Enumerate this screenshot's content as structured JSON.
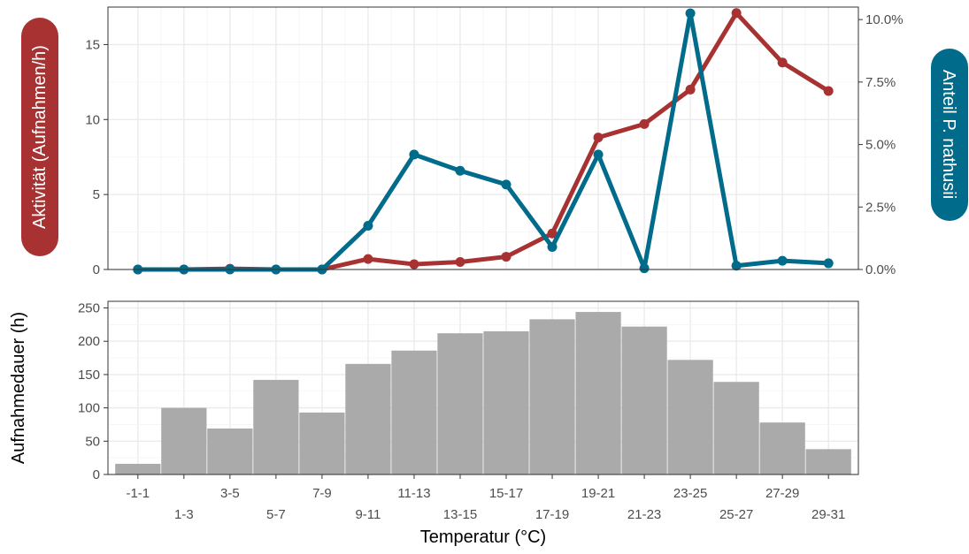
{
  "chart_data": [
    {
      "type": "line",
      "categories": [
        "-1-1",
        "1-3",
        "3-5",
        "5-7",
        "7-9",
        "9-11",
        "11-13",
        "13-15",
        "15-17",
        "17-19",
        "19-21",
        "21-23",
        "23-25",
        "25-27",
        "27-29",
        "29-31"
      ],
      "ylabel_left": "Aktivität (Aufnahmen/h)",
      "ylabel_right": "Anteil P. nathusii",
      "ylim_left": [
        0,
        17.5
      ],
      "ylim_right": [
        0,
        10.5
      ],
      "left_ticks": [
        "0",
        "5",
        "10",
        "15"
      ],
      "left_tick_values": [
        0,
        5,
        10,
        15
      ],
      "right_ticks": [
        "0.0%",
        "2.5%",
        "5.0%",
        "7.5%",
        "10.0%"
      ],
      "right_tick_values": [
        0,
        2.5,
        5,
        7.5,
        10
      ],
      "grid": true,
      "series": [
        {
          "axis": "left",
          "color": "#a83232",
          "values": [
            0,
            0,
            0.05,
            0,
            0,
            0.7,
            0.35,
            0.5,
            0.85,
            2.4,
            8.8,
            9.7,
            12.0,
            17.1,
            13.8,
            11.9
          ]
        },
        {
          "axis": "right",
          "color": "#006b8a",
          "values": [
            0,
            0,
            0,
            0,
            0,
            1.75,
            4.6,
            3.95,
            3.4,
            0.9,
            4.6,
            0.05,
            10.25,
            0.15,
            0.35,
            0.25
          ]
        }
      ]
    },
    {
      "type": "bar",
      "categories": [
        "-1-1",
        "1-3",
        "3-5",
        "5-7",
        "7-9",
        "9-11",
        "11-13",
        "13-15",
        "15-17",
        "17-19",
        "19-21",
        "21-23",
        "23-25",
        "25-27",
        "27-29",
        "29-31"
      ],
      "values": [
        16,
        100,
        69,
        142,
        93,
        166,
        186,
        212,
        215,
        233,
        244,
        222,
        172,
        139,
        78,
        38
      ],
      "ylabel": "Aufnahmedauer (h)",
      "xlabel": "Temperatur (°C)",
      "ylim": [
        0,
        260
      ],
      "y_ticks": [
        "0",
        "50",
        "100",
        "150",
        "200",
        "250"
      ],
      "y_tick_values": [
        0,
        50,
        100,
        150,
        200,
        250
      ],
      "bar_color": "#aaaaaa",
      "grid": true
    }
  ]
}
